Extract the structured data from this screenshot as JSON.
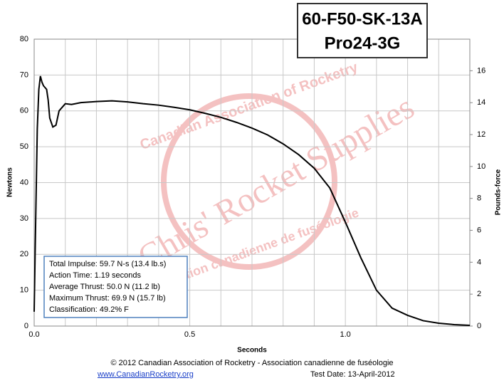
{
  "chart_data": {
    "type": "line",
    "title": "60-F50-SK-13A",
    "subtitle": "Pro24-3G",
    "x_label": "Seconds",
    "y_label": "Newtons",
    "y2_label": "Pounds-force",
    "x": [
      0,
      0.005,
      0.01,
      0.015,
      0.02,
      0.025,
      0.03,
      0.04,
      0.045,
      0.05,
      0.06,
      0.07,
      0.08,
      0.1,
      0.12,
      0.15,
      0.2,
      0.25,
      0.3,
      0.35,
      0.4,
      0.45,
      0.5,
      0.55,
      0.6,
      0.65,
      0.7,
      0.75,
      0.8,
      0.85,
      0.9,
      0.95,
      1.0,
      1.05,
      1.1,
      1.15,
      1.2,
      1.25,
      1.3,
      1.35,
      1.4
    ],
    "values": [
      4,
      30,
      55,
      66,
      69.7,
      68,
      67,
      66,
      63,
      58,
      55.5,
      56,
      60,
      62,
      61.8,
      62.3,
      62.6,
      62.8,
      62.5,
      62,
      61.6,
      61,
      60.3,
      59.3,
      58.2,
      56.8,
      55.2,
      53.3,
      50.8,
      47.8,
      44,
      38.5,
      29,
      19,
      10,
      5,
      3,
      1.5,
      0.8,
      0.4,
      0.2
    ],
    "color": "#000000",
    "xlim": [
      0,
      1.4
    ],
    "xticks": [
      {
        "value": 0,
        "label": "0.0"
      },
      0.5,
      {
        "value": 1,
        "label": "1.0"
      }
    ],
    "xminorticks": [
      0.1,
      0.2,
      0.3,
      0.4,
      0.6,
      0.7,
      0.8,
      0.9,
      1.1,
      1.2,
      1.3
    ],
    "ylim": [
      0,
      80
    ],
    "yticks": [
      0,
      10,
      20,
      30,
      40,
      50,
      60,
      70,
      80
    ],
    "y2lim": [
      0,
      17.98
    ],
    "y2ticks": [
      0,
      2,
      4,
      6,
      8,
      10,
      12,
      14,
      16
    ],
    "grid": true,
    "annotations": [
      "Total Impulse: 59.7 N-s (13.4 lb.s)",
      "Action Time: 1.19 seconds",
      "Average Thrust: 50.0 N (11.2 lb)",
      "Maximum Thrust: 69.9 N (15.7 lb)",
      "Classification: 49.2% F"
    ],
    "watermark": [
      "Chris' Rocket Supplies",
      "Canadian Association of Rocketry",
      "Association canadienne de fuséologie"
    ]
  },
  "footer": {
    "copyright": "© 2012 Canadian Association of Rocketry - Association canadienne de fuséologie",
    "link": "www.CanadianRocketry.org",
    "test_date": "Test  Date: 13-April-2012"
  }
}
